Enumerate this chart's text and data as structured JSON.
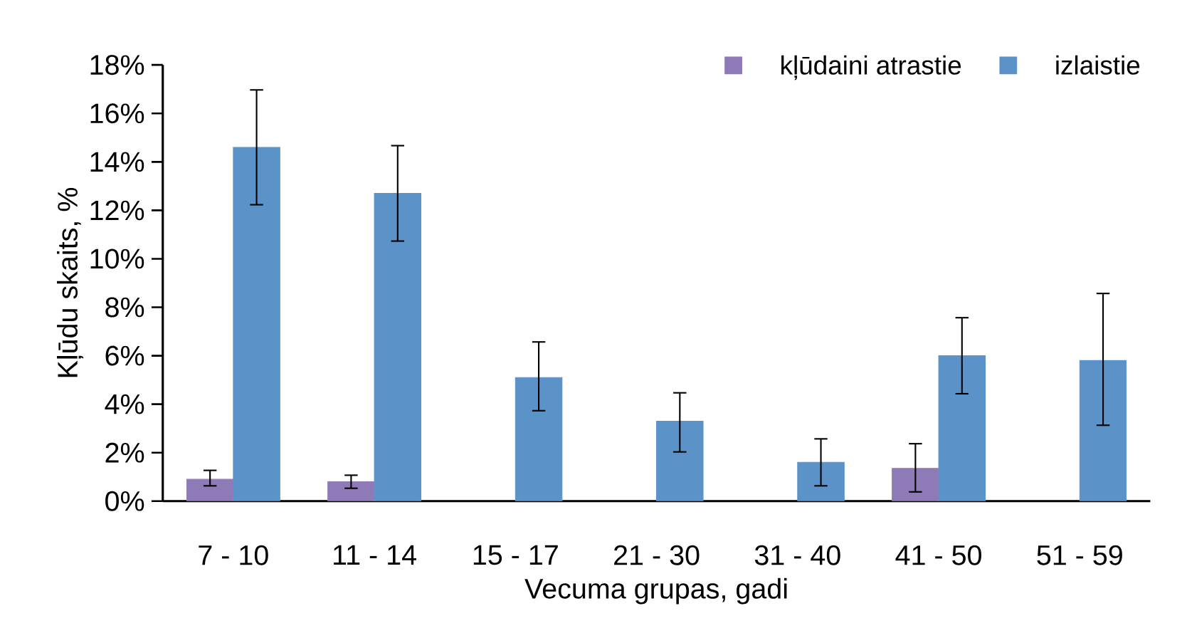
{
  "chart_data": {
    "type": "bar",
    "xlabel": "Vecuma grupas, gadi",
    "ylabel": "Kļūdu skaits, %",
    "categories": [
      "7 - 10",
      "11 - 14",
      "15 - 17",
      "21 - 30",
      "31 - 40",
      "41 - 50",
      "51 - 59"
    ],
    "series": [
      {
        "name": "kļūdaini atrastie",
        "color": "#8f7ab8",
        "values": [
          0.9,
          0.8,
          null,
          null,
          null,
          1.35,
          null
        ],
        "errors": [
          [
            0.6,
            1.3
          ],
          [
            0.5,
            1.1
          ],
          null,
          null,
          null,
          [
            0.35,
            2.4
          ],
          null
        ]
      },
      {
        "name": "izlaistie",
        "color": "#5b93c8",
        "values": [
          14.6,
          12.7,
          5.1,
          3.3,
          1.6,
          6.0,
          5.8
        ],
        "errors": [
          [
            12.2,
            17.0
          ],
          [
            10.7,
            14.7
          ],
          [
            3.7,
            6.6
          ],
          [
            2.0,
            4.5
          ],
          [
            0.6,
            2.6
          ],
          [
            4.4,
            7.6
          ],
          [
            3.1,
            8.6
          ]
        ]
      }
    ],
    "ylim": [
      0,
      18
    ],
    "yticks": [
      {
        "value": 0,
        "label": "0%"
      },
      {
        "value": 2,
        "label": "2%"
      },
      {
        "value": 4,
        "label": "4%"
      },
      {
        "value": 6,
        "label": "6%"
      },
      {
        "value": 8,
        "label": "8%"
      },
      {
        "value": 10,
        "label": "10%"
      },
      {
        "value": 12,
        "label": "12%"
      },
      {
        "value": 14,
        "label": "14%"
      },
      {
        "value": 16,
        "label": "16%"
      },
      {
        "value": 18,
        "label": "18%"
      }
    ],
    "legend": "top right"
  }
}
